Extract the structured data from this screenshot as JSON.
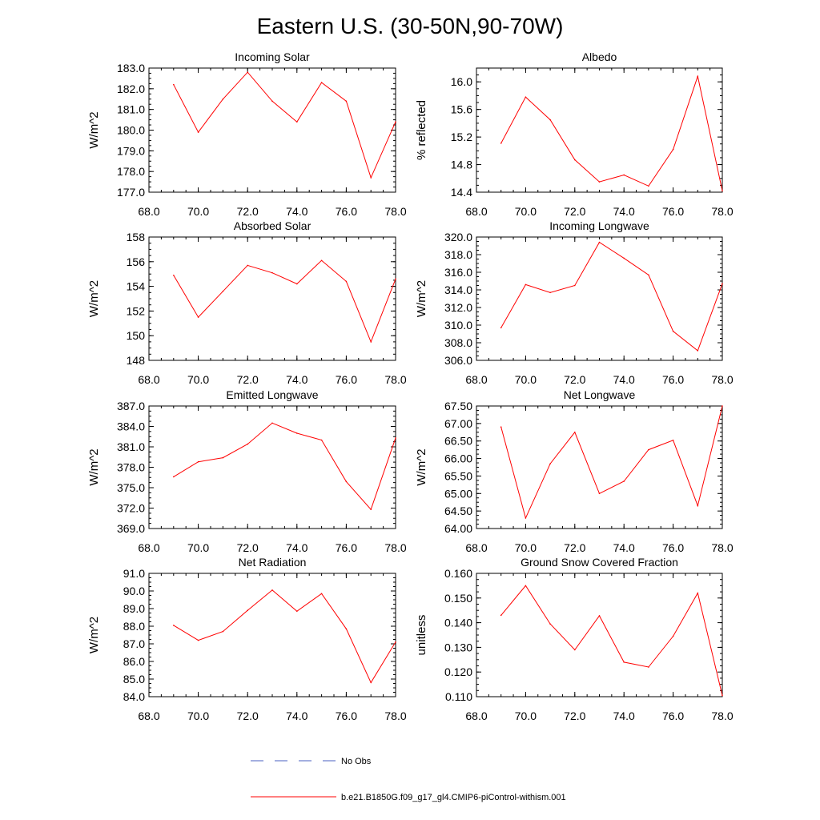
{
  "figure": {
    "title": "Eastern U.S. (30-50N,90-70W)",
    "colors": {
      "model": "#ff0000",
      "obs": "#4a5fc1",
      "axes": "#000000"
    },
    "legend": [
      {
        "label": "No Obs",
        "style": "dashed",
        "color": "#4a5fc1"
      },
      {
        "label": "b.e21.B1850G.f09_g17_gl4.CMIP6-piControl-withism.001",
        "style": "solid",
        "color": "#ff0000"
      }
    ]
  },
  "chart_data": [
    {
      "type": "line",
      "title": "Incoming Solar",
      "ylabel": "W/m^2",
      "xlim": [
        68,
        78
      ],
      "ylim": [
        177,
        183
      ],
      "ytick_decimals": 1,
      "yticks_step": 1,
      "xticks": [
        68,
        70,
        72,
        74,
        76,
        78
      ],
      "xtick_labels": [
        "68.0",
        "70.0",
        "72.0",
        "74.0",
        "76.0",
        "78.0"
      ],
      "x": [
        69,
        70,
        71,
        72,
        73,
        74,
        75,
        76,
        77,
        78
      ],
      "series": [
        {
          "name": "b.e21.B1850G.f09_g17_gl4.CMIP6-piControl-withism.001",
          "values": [
            182.2,
            179.9,
            181.5,
            182.8,
            181.4,
            180.4,
            182.3,
            181.4,
            177.7,
            180.4
          ]
        }
      ]
    },
    {
      "type": "line",
      "title": "Albedo",
      "ylabel": "% reflected",
      "xlim": [
        68,
        78
      ],
      "ylim": [
        14.4,
        16.2
      ],
      "ytick_decimals": 1,
      "yticks": [
        14.4,
        14.8,
        15.2,
        15.6,
        16.0
      ],
      "xticks": [
        68,
        70,
        72,
        74,
        76,
        78
      ],
      "xtick_labels": [
        "68.0",
        "70.0",
        "72.0",
        "74.0",
        "76.0",
        "78.0"
      ],
      "x": [
        69,
        70,
        71,
        72,
        73,
        74,
        75,
        76,
        77,
        78
      ],
      "series": [
        {
          "name": "b.e21.B1850G.f09_g17_gl4.CMIP6-piControl-withism.001",
          "values": [
            15.11,
            15.78,
            15.45,
            14.87,
            14.55,
            14.65,
            14.49,
            15.02,
            16.08,
            14.42
          ]
        }
      ]
    },
    {
      "type": "line",
      "title": "Absorbed Solar",
      "ylabel": "W/m^2",
      "xlim": [
        68,
        78
      ],
      "ylim": [
        148,
        158
      ],
      "ytick_decimals": 0,
      "yticks_step": 2,
      "xticks": [
        68,
        70,
        72,
        74,
        76,
        78
      ],
      "xtick_labels": [
        "68.0",
        "70.0",
        "72.0",
        "74.0",
        "76.0",
        "78.0"
      ],
      "x": [
        69,
        70,
        71,
        72,
        73,
        74,
        75,
        76,
        77,
        78
      ],
      "series": [
        {
          "name": "b.e21.B1850G.f09_g17_gl4.CMIP6-piControl-withism.001",
          "values": [
            154.9,
            151.5,
            153.6,
            155.7,
            155.1,
            154.2,
            156.1,
            154.4,
            149.5,
            154.6
          ]
        }
      ]
    },
    {
      "type": "line",
      "title": "Incoming Longwave",
      "ylabel": "W/m^2",
      "xlim": [
        68,
        78
      ],
      "ylim": [
        306,
        320
      ],
      "ytick_decimals": 1,
      "yticks_step": 2,
      "xticks": [
        68,
        70,
        72,
        74,
        76,
        78
      ],
      "xtick_labels": [
        "68.0",
        "70.0",
        "72.0",
        "74.0",
        "76.0",
        "78.0"
      ],
      "x": [
        69,
        70,
        71,
        72,
        73,
        74,
        75,
        76,
        77,
        78
      ],
      "series": [
        {
          "name": "b.e21.B1850G.f09_g17_gl4.CMIP6-piControl-withism.001",
          "values": [
            309.7,
            314.6,
            313.7,
            314.5,
            319.4,
            317.6,
            315.7,
            309.3,
            307.1,
            314.7
          ]
        }
      ]
    },
    {
      "type": "line",
      "title": "Emitted Longwave",
      "ylabel": "W/m^2",
      "xlim": [
        68,
        78
      ],
      "ylim": [
        369,
        387
      ],
      "ytick_decimals": 1,
      "yticks_step": 3,
      "xticks": [
        68,
        70,
        72,
        74,
        76,
        78
      ],
      "xtick_labels": [
        "68.0",
        "70.0",
        "72.0",
        "74.0",
        "76.0",
        "78.0"
      ],
      "x": [
        69,
        70,
        71,
        72,
        73,
        74,
        75,
        76,
        77,
        78
      ],
      "series": [
        {
          "name": "b.e21.B1850G.f09_g17_gl4.CMIP6-piControl-withism.001",
          "values": [
            376.6,
            378.8,
            379.4,
            381.4,
            384.5,
            383.0,
            382.0,
            375.9,
            371.8,
            382.3
          ]
        }
      ]
    },
    {
      "type": "line",
      "title": "Net Longwave",
      "ylabel": "W/m^2",
      "xlim": [
        68,
        78
      ],
      "ylim": [
        64,
        67.5
      ],
      "ytick_decimals": 2,
      "yticks_step": 0.5,
      "xticks": [
        68,
        70,
        72,
        74,
        76,
        78
      ],
      "xtick_labels": [
        "68.0",
        "70.0",
        "72.0",
        "74.0",
        "76.0",
        "78.0"
      ],
      "x": [
        69,
        70,
        71,
        72,
        73,
        74,
        75,
        76,
        77,
        78
      ],
      "series": [
        {
          "name": "b.e21.B1850G.f09_g17_gl4.CMIP6-piControl-withism.001",
          "values": [
            66.9,
            64.3,
            65.85,
            66.75,
            65.0,
            65.35,
            66.25,
            66.52,
            64.65,
            67.5
          ]
        }
      ]
    },
    {
      "type": "line",
      "title": "Net Radiation",
      "ylabel": "W/m^2",
      "xlim": [
        68,
        78
      ],
      "ylim": [
        84,
        91
      ],
      "ytick_decimals": 1,
      "yticks_step": 1,
      "xticks": [
        68,
        70,
        72,
        74,
        76,
        78
      ],
      "xtick_labels": [
        "68.0",
        "70.0",
        "72.0",
        "74.0",
        "76.0",
        "78.0"
      ],
      "x": [
        69,
        70,
        71,
        72,
        73,
        74,
        75,
        76,
        77,
        78
      ],
      "series": [
        {
          "name": "b.e21.B1850G.f09_g17_gl4.CMIP6-piControl-withism.001",
          "values": [
            88.05,
            87.2,
            87.7,
            88.9,
            90.05,
            88.85,
            89.85,
            87.85,
            84.8,
            87.1
          ]
        }
      ]
    },
    {
      "type": "line",
      "title": "Ground Snow Covered Fraction",
      "ylabel": "unitless",
      "xlim": [
        68,
        78
      ],
      "ylim": [
        0.11,
        0.16
      ],
      "ytick_decimals": 3,
      "yticks_step": 0.01,
      "xticks": [
        68,
        70,
        72,
        74,
        76,
        78
      ],
      "xtick_labels": [
        "68.0",
        "70.0",
        "72.0",
        "74.0",
        "76.0",
        "78.0"
      ],
      "x": [
        69,
        70,
        71,
        72,
        73,
        74,
        75,
        76,
        77,
        78
      ],
      "series": [
        {
          "name": "b.e21.B1850G.f09_g17_gl4.CMIP6-piControl-withism.001",
          "values": [
            0.143,
            0.155,
            0.1395,
            0.129,
            0.1428,
            0.124,
            0.122,
            0.1345,
            0.152,
            0.1105
          ]
        }
      ]
    }
  ]
}
